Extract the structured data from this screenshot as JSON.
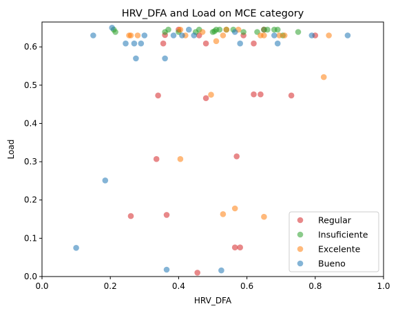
{
  "chart_data": {
    "type": "scatter",
    "title": "HRV_DFA and Load on MCE category",
    "xlabel": "HRV_DFA",
    "ylabel": "Load",
    "xlim": [
      0.0,
      1.0
    ],
    "ylim": [
      0.0,
      0.665
    ],
    "xticks": [
      "0.0",
      "0.2",
      "0.4",
      "0.6",
      "0.8",
      "1.0"
    ],
    "yticks": [
      "0.0",
      "0.1",
      "0.2",
      "0.3",
      "0.4",
      "0.5",
      "0.6"
    ],
    "grid": false,
    "legend_position": "lower-right",
    "series": [
      {
        "name": "Regular",
        "color": "#d62728",
        "points": [
          [
            0.36,
            0.631
          ],
          [
            0.355,
            0.609
          ],
          [
            0.4,
            0.645
          ],
          [
            0.46,
            0.63
          ],
          [
            0.48,
            0.609
          ],
          [
            0.59,
            0.63
          ],
          [
            0.62,
            0.609
          ],
          [
            0.65,
            0.645
          ],
          [
            0.8,
            0.63
          ],
          [
            0.34,
            0.473
          ],
          [
            0.48,
            0.466
          ],
          [
            0.62,
            0.476
          ],
          [
            0.64,
            0.476
          ],
          [
            0.73,
            0.473
          ],
          [
            0.335,
            0.307
          ],
          [
            0.57,
            0.314
          ],
          [
            0.26,
            0.158
          ],
          [
            0.365,
            0.161
          ],
          [
            0.565,
            0.076
          ],
          [
            0.58,
            0.076
          ],
          [
            0.455,
            0.01
          ]
        ]
      },
      {
        "name": "Insuficiente",
        "color": "#2ca02c",
        "points": [
          [
            0.21,
            0.645
          ],
          [
            0.215,
            0.639
          ],
          [
            0.36,
            0.639
          ],
          [
            0.37,
            0.645
          ],
          [
            0.4,
            0.639
          ],
          [
            0.45,
            0.639
          ],
          [
            0.46,
            0.645
          ],
          [
            0.5,
            0.639
          ],
          [
            0.505,
            0.641
          ],
          [
            0.51,
            0.645
          ],
          [
            0.52,
            0.645
          ],
          [
            0.54,
            0.645
          ],
          [
            0.56,
            0.645
          ],
          [
            0.59,
            0.639
          ],
          [
            0.63,
            0.639
          ],
          [
            0.65,
            0.645
          ],
          [
            0.66,
            0.645
          ],
          [
            0.68,
            0.645
          ],
          [
            0.69,
            0.645
          ],
          [
            0.705,
            0.63
          ],
          [
            0.75,
            0.639
          ]
        ]
      },
      {
        "name": "Excelente",
        "color": "#ff7f0e",
        "points": [
          [
            0.255,
            0.63
          ],
          [
            0.26,
            0.63
          ],
          [
            0.28,
            0.63
          ],
          [
            0.405,
            0.645
          ],
          [
            0.42,
            0.63
          ],
          [
            0.47,
            0.639
          ],
          [
            0.51,
            0.615
          ],
          [
            0.53,
            0.63
          ],
          [
            0.54,
            0.645
          ],
          [
            0.575,
            0.645
          ],
          [
            0.64,
            0.63
          ],
          [
            0.65,
            0.63
          ],
          [
            0.695,
            0.63
          ],
          [
            0.71,
            0.63
          ],
          [
            0.84,
            0.63
          ],
          [
            0.825,
            0.521
          ],
          [
            0.495,
            0.475
          ],
          [
            0.405,
            0.307
          ],
          [
            0.565,
            0.178
          ],
          [
            0.53,
            0.163
          ],
          [
            0.65,
            0.156
          ]
        ]
      },
      {
        "name": "Bueno",
        "color": "#1f77b4",
        "points": [
          [
            0.15,
            0.63
          ],
          [
            0.205,
            0.65
          ],
          [
            0.245,
            0.609
          ],
          [
            0.27,
            0.609
          ],
          [
            0.29,
            0.609
          ],
          [
            0.3,
            0.63
          ],
          [
            0.385,
            0.63
          ],
          [
            0.41,
            0.63
          ],
          [
            0.43,
            0.645
          ],
          [
            0.445,
            0.63
          ],
          [
            0.565,
            0.639
          ],
          [
            0.58,
            0.609
          ],
          [
            0.68,
            0.63
          ],
          [
            0.69,
            0.609
          ],
          [
            0.79,
            0.63
          ],
          [
            0.895,
            0.63
          ],
          [
            0.275,
            0.57
          ],
          [
            0.36,
            0.57
          ],
          [
            0.185,
            0.251
          ],
          [
            0.1,
            0.075
          ],
          [
            0.365,
            0.018
          ],
          [
            0.525,
            0.016
          ]
        ]
      }
    ],
    "legend_order": [
      "Regular",
      "Insuficiente",
      "Excelente",
      "Bueno"
    ]
  }
}
